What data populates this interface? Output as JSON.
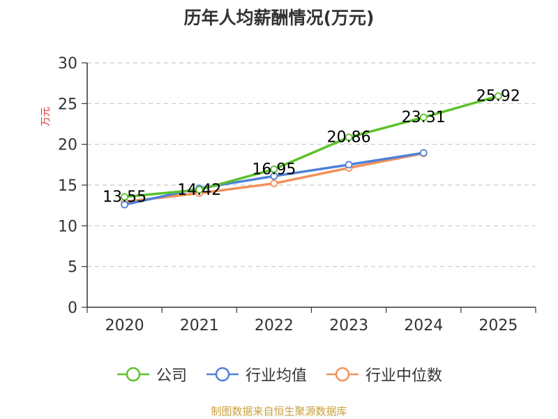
{
  "chart_data": {
    "type": "line",
    "title": "历年人均薪酬情况(万元)",
    "ylabel": "万元",
    "xlabel": "",
    "categories": [
      "2020",
      "2021",
      "2022",
      "2023",
      "2024",
      "2025"
    ],
    "ylim": [
      0,
      30
    ],
    "yticks": [
      0,
      5,
      10,
      15,
      20,
      25,
      30
    ],
    "grid": true,
    "legend_position": "bottom",
    "series": [
      {
        "name": "公司",
        "color": "#5cc22a",
        "values": [
          13.55,
          14.42,
          16.95,
          20.86,
          23.31,
          25.92
        ],
        "labels": [
          "13.55",
          "14.42",
          "16.95",
          "20.86",
          "23.31",
          "25.92"
        ]
      },
      {
        "name": "行业均值",
        "color": "#4f81d8",
        "values": [
          12.6,
          14.6,
          16.1,
          17.5,
          18.95,
          null
        ],
        "labels": []
      },
      {
        "name": "行业中位数",
        "color": "#f2915a",
        "values": [
          12.95,
          14.0,
          15.2,
          17.1,
          18.9,
          null
        ],
        "labels": []
      }
    ]
  },
  "source_note": "制图数据来自恒生聚源数据库"
}
